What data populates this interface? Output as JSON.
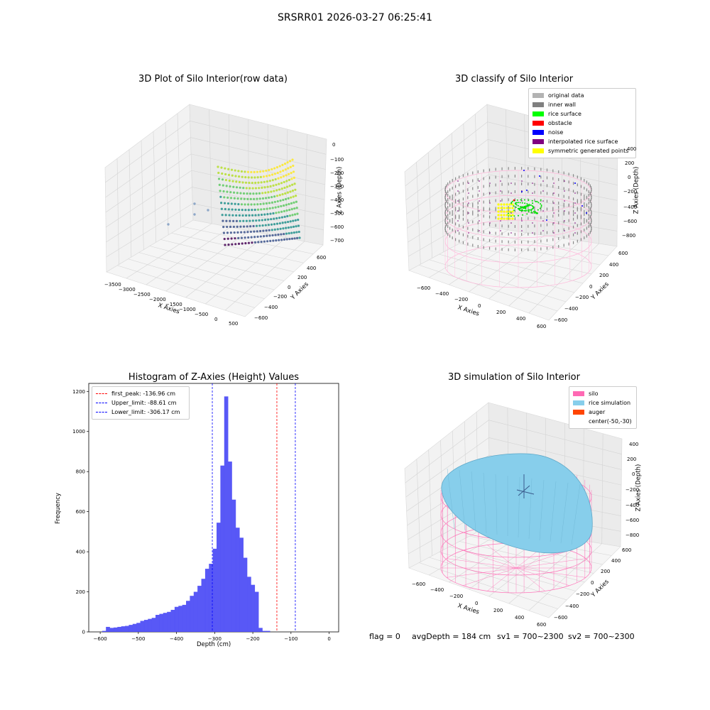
{
  "figure": {
    "suptitle": "SRSRR01 2026-03-27 06:25:41",
    "status": {
      "flag": "flag = 0",
      "avg_depth": "avgDepth = 184 cm",
      "sv1": "sv1 = 700~2300",
      "sv2": "sv2 = 700~2300"
    }
  },
  "panel_raw": {
    "title": "3D Plot of Silo Interior(row data)",
    "xlabel": "X Axies",
    "ylabel": "Y Axies",
    "zlabel": "Z Axies (Depth)",
    "x_ticks": [
      "−3500",
      "−3000",
      "−2500",
      "−2000",
      "−1500",
      "−1000",
      "−500",
      "0",
      "500"
    ],
    "y_ticks": [
      "600",
      "400",
      "200",
      "0",
      "−200",
      "−400",
      "−600"
    ],
    "z_ticks": [
      "0",
      "−100",
      "−200",
      "−300",
      "−400",
      "−500",
      "−600",
      "−700"
    ],
    "colormap": "viridis"
  },
  "panel_classify": {
    "title": "3D classify of Silo Interior",
    "xlabel": "X Axies",
    "ylabel": "Y Axies",
    "zlabel": "Z Axies (Depth)",
    "x_ticks": [
      "−600",
      "−400",
      "−200",
      "0",
      "200",
      "400",
      "600"
    ],
    "y_ticks": [
      "600",
      "400",
      "200",
      "0",
      "−200",
      "−400",
      "−600"
    ],
    "z_ticks": [
      "400",
      "200",
      "0",
      "−200",
      "−400",
      "−600",
      "−800"
    ],
    "legend": [
      {
        "label": "original data",
        "color": "#b3b3b3"
      },
      {
        "label": "inner wall",
        "color": "#808080"
      },
      {
        "label": "rice surface",
        "color": "#00ff00"
      },
      {
        "label": "obstacle",
        "color": "#ff0000"
      },
      {
        "label": "noise",
        "color": "#0000ff"
      },
      {
        "label": "interpolated rice surface",
        "color": "#800080"
      },
      {
        "label": "symmetric generated points",
        "color": "#ffff00"
      }
    ]
  },
  "panel_sim": {
    "title": "3D simulation of Silo Interior",
    "xlabel": "X Axies",
    "ylabel": "Y Axies",
    "zlabel": "Z Axies (Depth)",
    "x_ticks": [
      "−600",
      "−400",
      "−200",
      "0",
      "200",
      "400",
      "600"
    ],
    "y_ticks": [
      "600",
      "400",
      "200",
      "0",
      "−200",
      "−400",
      "−600"
    ],
    "z_ticks": [
      "400",
      "200",
      "0",
      "−200",
      "−400",
      "−600",
      "−800"
    ],
    "legend": [
      {
        "label": "silo",
        "color": "#ff69b4"
      },
      {
        "label": "rice simulation",
        "color": "#87ceeb"
      },
      {
        "label": "auger",
        "color": "#ff4500"
      },
      {
        "label": "center(-50,-30)",
        "color": ""
      }
    ]
  },
  "chart_data": {
    "type": "bar",
    "title": "Histogram of Z-Axies (Height) Values",
    "xlabel": "Depth (cm)",
    "ylabel": "Frequency",
    "xlim": [
      -630,
      25
    ],
    "ylim": [
      0,
      1240
    ],
    "x_ticks": [
      -600,
      -500,
      -400,
      -300,
      -200,
      -100,
      0
    ],
    "x_tick_labels": [
      "−600",
      "−500",
      "−400",
      "−300",
      "−200",
      "−100",
      "0"
    ],
    "y_ticks": [
      0,
      200,
      400,
      600,
      800,
      1000,
      1200
    ],
    "bar_color": "#4f4ff5",
    "bin_start": -595,
    "bin_width": 10,
    "values": [
      5,
      25,
      20,
      22,
      25,
      28,
      30,
      35,
      40,
      45,
      55,
      60,
      65,
      70,
      85,
      90,
      95,
      100,
      110,
      125,
      130,
      135,
      155,
      180,
      200,
      230,
      265,
      315,
      340,
      415,
      545,
      830,
      1175,
      850,
      660,
      520,
      470,
      370,
      275,
      235,
      200,
      20,
      5,
      5
    ],
    "vlines": [
      {
        "label": "first_peak: -136.96 cm",
        "x": -136.96,
        "color": "#ff0000"
      },
      {
        "label": "Upper_limit: -88.61 cm",
        "x": -88.61,
        "color": "#0000ff"
      },
      {
        "label": "Lower_limit: -306.17 cm",
        "x": -306.17,
        "color": "#0000ff"
      }
    ],
    "grid": false,
    "legend_position": "top-left"
  }
}
